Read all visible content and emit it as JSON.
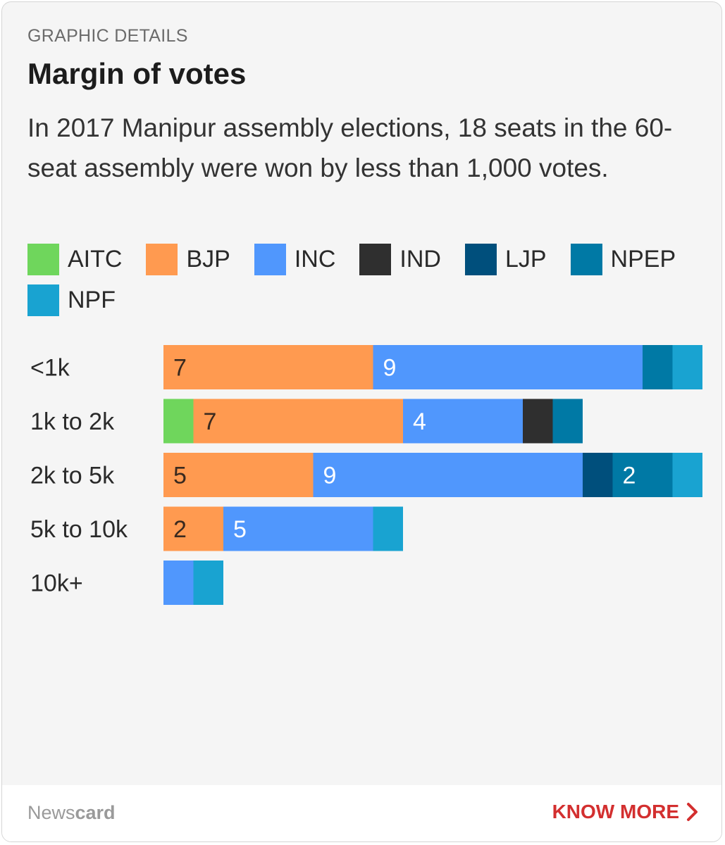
{
  "card": {
    "eyebrow": "GRAPHIC DETAILS",
    "title": "Margin of votes",
    "subtitle": "In 2017 Manipur assembly elections, 18 seats in the 60-seat assembly were won by less than 1,000 votes."
  },
  "footer": {
    "brand_light": "News",
    "brand_bold": "card",
    "cta_label": "KNOW MORE",
    "cta_icon": "chevron-right-icon",
    "cta_color": "#d32f2f"
  },
  "chart_data": {
    "type": "bar",
    "orientation": "horizontal",
    "stacked": true,
    "categories": [
      "<1k",
      "1k to 2k",
      "2k to 5k",
      "5k to 10k",
      "10k+"
    ],
    "series": [
      {
        "name": "AITC",
        "color": "#6fd65c",
        "values": [
          0,
          1,
          0,
          0,
          0
        ]
      },
      {
        "name": "BJP",
        "color": "#ff9a50",
        "values": [
          7,
          7,
          5,
          2,
          0
        ]
      },
      {
        "name": "INC",
        "color": "#5097fd",
        "values": [
          9,
          4,
          9,
          5,
          1
        ]
      },
      {
        "name": "IND",
        "color": "#2f2f2f",
        "values": [
          0,
          1,
          0,
          0,
          0
        ]
      },
      {
        "name": "LJP",
        "color": "#004f7c",
        "values": [
          0,
          0,
          1,
          0,
          0
        ]
      },
      {
        "name": "NPEP",
        "color": "#0079a5",
        "values": [
          1,
          1,
          2,
          0,
          0
        ]
      },
      {
        "name": "NPF",
        "color": "#19a3d1",
        "values": [
          1,
          0,
          1,
          1,
          1
        ]
      }
    ],
    "value_labels_min": 2,
    "xlim": [
      0,
      18
    ],
    "legend_position": "top",
    "grid": false
  }
}
